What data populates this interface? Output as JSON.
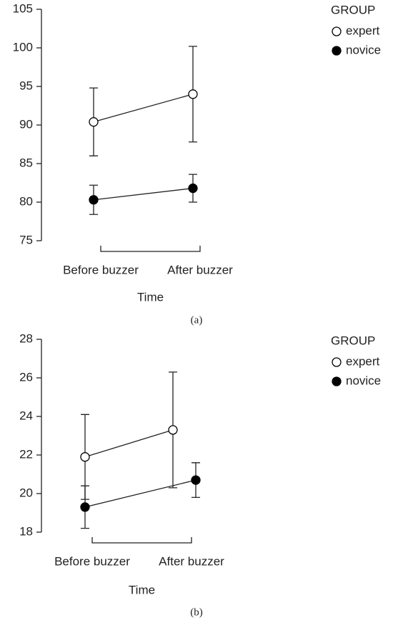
{
  "chart_data": [
    {
      "type": "line",
      "caption": "(a)",
      "x_label": "Time",
      "legend_title": "GROUP",
      "legend": "right",
      "categories": [
        "Before buzzer",
        "After buzzer"
      ],
      "ylim": [
        75,
        105
      ],
      "yticks": [
        75,
        80,
        85,
        90,
        95,
        100,
        105
      ],
      "series": [
        {
          "name": "expert",
          "color": "#ffffff",
          "values": [
            90.4,
            94.0
          ],
          "errors": [
            4.4,
            6.2
          ]
        },
        {
          "name": "novice",
          "color": "#000000",
          "values": [
            80.3,
            81.8
          ],
          "errors": [
            1.9,
            1.8
          ]
        }
      ]
    },
    {
      "type": "line",
      "caption": "(b)",
      "x_label": "Time",
      "legend_title": "GROUP",
      "legend": "right",
      "categories": [
        "Before buzzer",
        "After buzzer"
      ],
      "ylim": [
        18,
        28
      ],
      "yticks": [
        18,
        20,
        22,
        24,
        26,
        28
      ],
      "series": [
        {
          "name": "expert",
          "color": "#ffffff",
          "values": [
            21.9,
            23.3
          ],
          "errors": [
            2.2,
            3.0
          ]
        },
        {
          "name": "novice",
          "color": "#000000",
          "values": [
            19.3,
            20.7
          ],
          "errors": [
            1.1,
            0.9
          ]
        }
      ]
    }
  ]
}
